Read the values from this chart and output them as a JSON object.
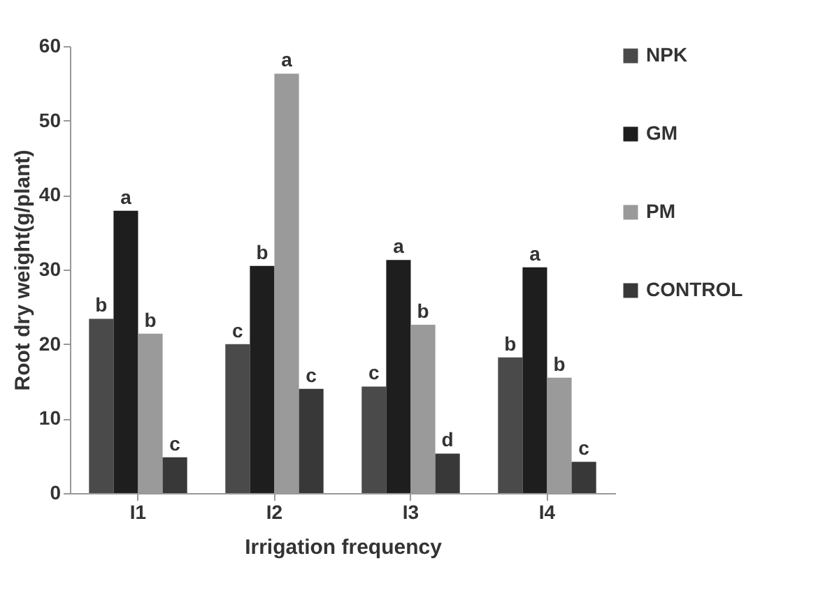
{
  "chart_data": {
    "type": "bar",
    "xlabel": "Irrigation frequency",
    "ylabel": "Root dry weight(g/plant)",
    "categories": [
      "I1",
      "I2",
      "I3",
      "I4"
    ],
    "series": [
      {
        "name": "NPK",
        "color": "#4a4a4a",
        "values": [
          23.4,
          20,
          14.3,
          18.2
        ]
      },
      {
        "name": "GM",
        "color": "#1e1e1e",
        "values": [
          37.9,
          30.5,
          31.3,
          30.3
        ]
      },
      {
        "name": "PM",
        "color": "#9a9a9a",
        "values": [
          21.4,
          56.3,
          22.6,
          15.5
        ]
      },
      {
        "name": "CONTROL",
        "color": "#383838",
        "values": [
          4.8,
          14,
          5.3,
          4.2
        ]
      }
    ],
    "ylim": [
      0,
      60
    ],
    "yticks": [
      0,
      10,
      20,
      30,
      40,
      50,
      60
    ],
    "grid": false,
    "legend": "right",
    "annotations": [
      {
        "text": "b",
        "x": "I1",
        "y": 23.4
      },
      {
        "text": "a",
        "x": "I1",
        "y": 37.9
      },
      {
        "text": "b",
        "x": "I1",
        "y": 21.4
      },
      {
        "text": "c",
        "x": "I1",
        "y": 4.8
      },
      {
        "text": "c",
        "x": "I2",
        "y": 20
      },
      {
        "text": "b",
        "x": "I2",
        "y": 30.5
      },
      {
        "text": "a",
        "x": "I2",
        "y": 56.3
      },
      {
        "text": "c",
        "x": "I2",
        "y": 14
      },
      {
        "text": "c",
        "x": "I3",
        "y": 14.3
      },
      {
        "text": "a",
        "x": "I3",
        "y": 31.3
      },
      {
        "text": "b",
        "x": "I3",
        "y": 22.6
      },
      {
        "text": "d",
        "x": "I3",
        "y": 5.3
      },
      {
        "text": "b",
        "x": "I4",
        "y": 18.2
      },
      {
        "text": "a",
        "x": "I4",
        "y": 30.3
      },
      {
        "text": "b",
        "x": "I4",
        "y": 15.5
      },
      {
        "text": "c",
        "x": "I4",
        "y": 4.2
      }
    ]
  }
}
